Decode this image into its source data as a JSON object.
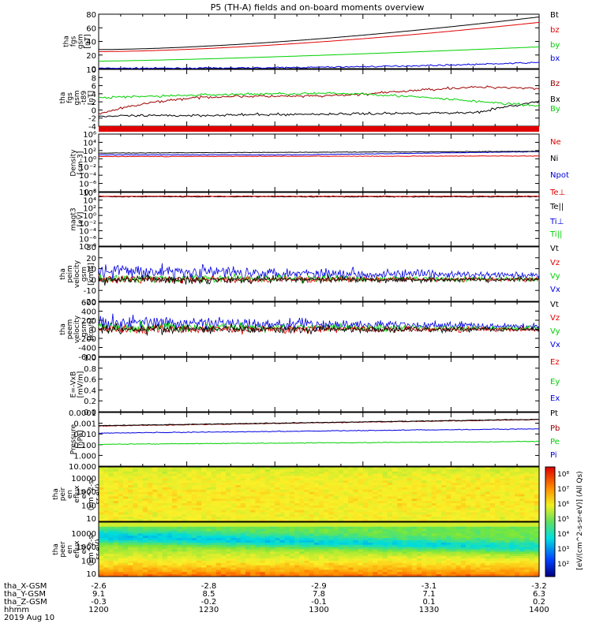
{
  "title": "P5 (TH-A) fields and on-board moments overview",
  "colors": {
    "black": "#000000",
    "red": "#e00000",
    "green": "#00d000",
    "blue": "#0000e0",
    "darkred": "#a00000"
  },
  "chart_data": [
    {
      "type": "line",
      "ylabel": [
        "tha",
        "fgs",
        "gsm",
        "[nT]"
      ],
      "yticks": [
        "0",
        "20",
        "40",
        "60",
        "80"
      ],
      "ylim": [
        0,
        80
      ],
      "series": [
        {
          "name": "Bt",
          "color": "black",
          "start": 28,
          "end": 76,
          "curve": 1.6
        },
        {
          "name": "bz",
          "color": "red",
          "start": 25,
          "end": 68,
          "curve": 1.6
        },
        {
          "name": "by",
          "color": "green",
          "start": 11,
          "end": 32,
          "curve": 1.3
        },
        {
          "name": "bx",
          "color": "blue",
          "start": 0.5,
          "end": 9,
          "curve": 2.5
        }
      ]
    },
    {
      "type": "line",
      "ylabel": [
        "tha",
        "fgs",
        "gsm",
        "-t89",
        "[nT]"
      ],
      "yticks": [
        "-4",
        "-2",
        "0",
        "2",
        "4",
        "6",
        "8",
        "10"
      ],
      "ylim": [
        -5,
        11
      ],
      "series": [
        {
          "name": "Bz",
          "color": "darkred"
        },
        {
          "name": "Bx",
          "color": "black"
        },
        {
          "name": "By",
          "color": "green"
        }
      ]
    },
    {
      "type": "line",
      "ylabel": [
        "Density",
        "[cm-3]"
      ],
      "yticks": [
        "10⁶",
        "10⁴",
        "10²",
        "10⁰",
        "10⁻²",
        "10⁻⁴",
        "10⁻⁶",
        "10⁻⁸"
      ],
      "scale": "log",
      "series": [
        {
          "name": "Ne",
          "color": "red"
        },
        {
          "name": "Ni",
          "color": "black"
        },
        {
          "name": "Npot",
          "color": "blue"
        }
      ]
    },
    {
      "type": "line",
      "ylabel": [
        "magt3",
        "[eV]"
      ],
      "yticks": [
        "10⁶",
        "10⁴",
        "10²",
        "10⁰",
        "10⁻²",
        "10⁻⁴",
        "10⁻⁶",
        "10⁻⁸"
      ],
      "scale": "log",
      "series": [
        {
          "name": "Te⊥",
          "color": "red"
        },
        {
          "name": "Te||",
          "color": "black"
        },
        {
          "name": "Ti⊥",
          "color": "blue"
        },
        {
          "name": "Ti||",
          "color": "green"
        }
      ]
    },
    {
      "type": "line",
      "ylabel": [
        "tha",
        "peim",
        "velocity",
        "gsm",
        "[km/s]"
      ],
      "yticks": [
        "-20",
        "-10",
        "0",
        "10",
        "20",
        "30"
      ],
      "ylim": [
        -20,
        30
      ],
      "series": [
        {
          "name": "Vt",
          "color": "black"
        },
        {
          "name": "Vz",
          "color": "red"
        },
        {
          "name": "Vy",
          "color": "green"
        },
        {
          "name": "Vx",
          "color": "blue"
        }
      ]
    },
    {
      "type": "line",
      "ylabel": [
        "tha",
        "peem",
        "velocity",
        "gsm",
        "[km/s]"
      ],
      "yticks": [
        "-600",
        "-400",
        "-200",
        "0",
        "200",
        "400",
        "600"
      ],
      "ylim": [
        -600,
        600
      ],
      "series": [
        {
          "name": "Vt",
          "color": "black"
        },
        {
          "name": "Vz",
          "color": "red"
        },
        {
          "name": "Vy",
          "color": "green"
        },
        {
          "name": "Vx",
          "color": "blue"
        }
      ]
    },
    {
      "type": "line",
      "ylabel": [
        "E=-VxB",
        "[mV/m]"
      ],
      "yticks": [
        "0.0",
        "0.2",
        "0.4",
        "0.6",
        "0.8",
        "1.0"
      ],
      "ylim": [
        0,
        1
      ],
      "series": [
        {
          "name": "Ez",
          "color": "red"
        },
        {
          "name": "Ey",
          "color": "green"
        },
        {
          "name": "Ex",
          "color": "blue"
        }
      ]
    },
    {
      "type": "line",
      "ylabel": [
        "Pressure",
        "[nPa]"
      ],
      "yticks": [
        "0.0001",
        "0.001",
        "0.010",
        "0.100",
        "1.000",
        "10.000"
      ],
      "scale": "log",
      "series": [
        {
          "name": "Pt",
          "color": "black"
        },
        {
          "name": "Pb",
          "color": "darkred"
        },
        {
          "name": "Pe",
          "color": "green"
        },
        {
          "name": "Pi",
          "color": "blue"
        }
      ]
    },
    {
      "type": "heatmap",
      "ylabel": [
        "tha",
        "peir",
        "en",
        "eflux",
        "eV",
        "(cm^2-s-",
        "sr-eV)"
      ],
      "yticks": [
        "10000",
        "1000",
        "100",
        "10"
      ]
    },
    {
      "type": "heatmap",
      "ylabel": [
        "tha",
        "peer",
        "en",
        "eflux",
        "eV",
        "(cm^2-s-",
        "sr-eV)"
      ],
      "yticks": [
        "10000",
        "1000",
        "100",
        "10"
      ]
    }
  ],
  "colorbar": {
    "label": "[eV/(cm^2-s-sr-eV)] (All Qs)",
    "ticks": [
      "10⁸",
      "10⁷",
      "10⁶",
      "10⁵",
      "10⁴",
      "10³",
      "10²"
    ]
  },
  "xaxis": {
    "labels": [
      "tha_X-GSM",
      "tha_Y-GSM",
      "tha_Z-GSM",
      "hhmm",
      "2019 Aug 10"
    ],
    "ticks": [
      {
        "x": "-2.6",
        "y": "9.1",
        "z": "-0.3",
        "t": "1200"
      },
      {
        "x": "-2.8",
        "y": "8.5",
        "z": "-0.2",
        "t": "1230"
      },
      {
        "x": "-2.9",
        "y": "7.8",
        "z": "-0.1",
        "t": "1300"
      },
      {
        "x": "-3.1",
        "y": "7.1",
        "z": "0.1",
        "t": "1330"
      },
      {
        "x": "-3.2",
        "y": "6.3",
        "z": "0.2",
        "t": "1400"
      }
    ]
  }
}
